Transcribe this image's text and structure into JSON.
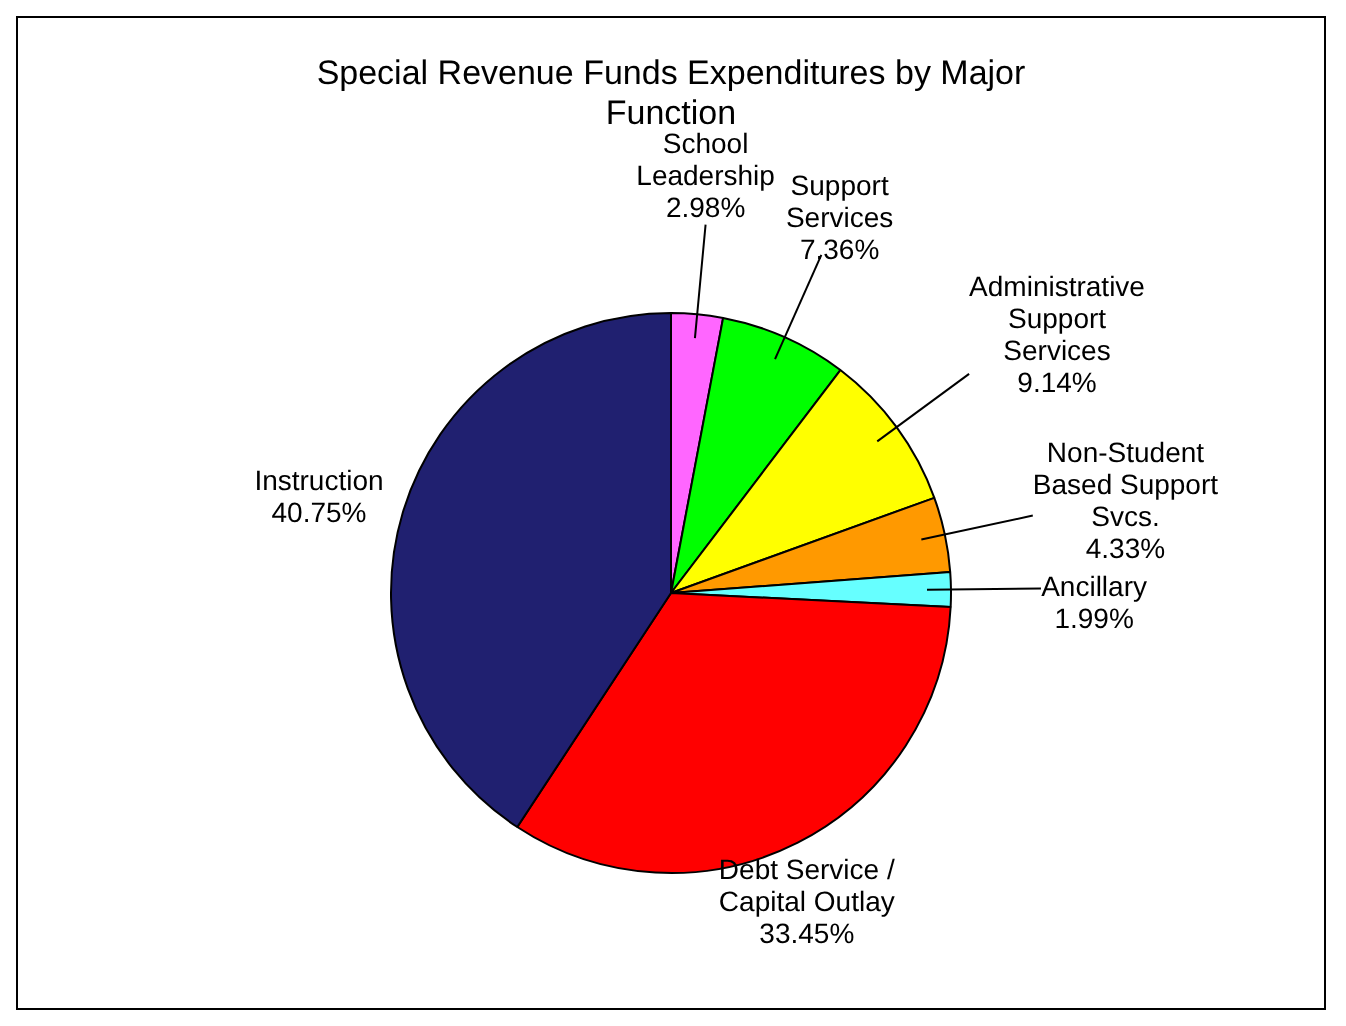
{
  "chart_data": {
    "type": "pie",
    "title": "Special Revenue Funds Expenditures by Major Function",
    "categories": [
      "School Leadership",
      "Support Services",
      "Administrative Support Services",
      "Non-Student Based Support Svcs.",
      "Ancillary",
      "Debt Service / Capital Outlay",
      "Instruction"
    ],
    "values": [
      2.98,
      7.36,
      9.14,
      4.33,
      1.99,
      33.45,
      40.75
    ],
    "value_labels": [
      "2.98%",
      "7.36%",
      "9.14%",
      "4.33%",
      "1.99%",
      "33.45%",
      "40.75%"
    ],
    "colors": [
      "#ff66ff",
      "#00ff00",
      "#ffff00",
      "#ff9900",
      "#66ffff",
      "#ff0000",
      "#202070"
    ],
    "legend": false
  }
}
